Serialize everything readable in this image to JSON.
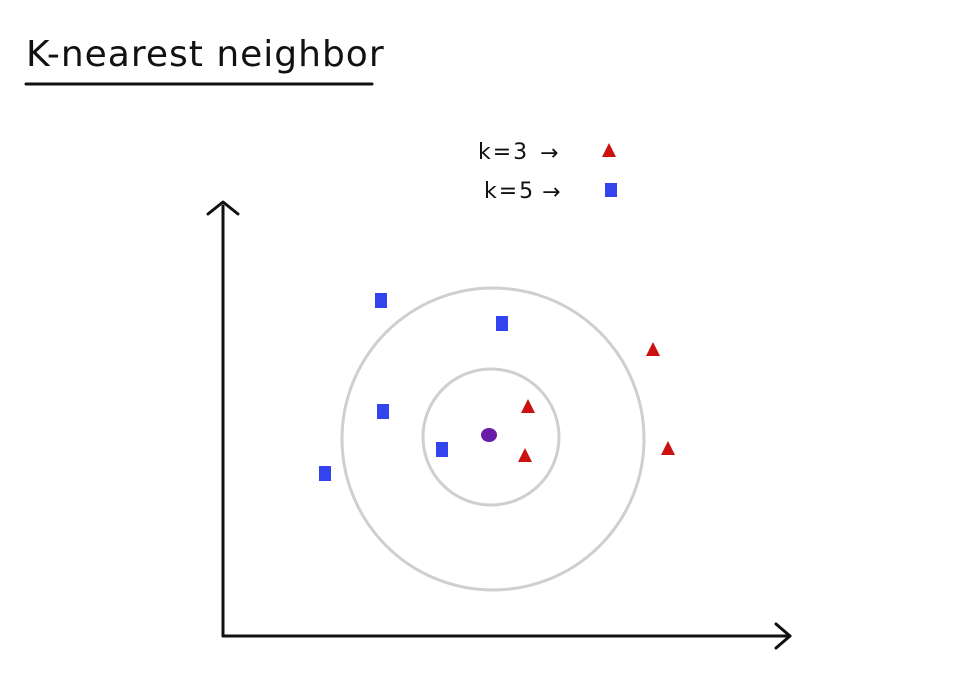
{
  "title": "K-nearest neighbor",
  "legend": [
    {
      "label": "k=3",
      "arrow": "→",
      "marker": "triangle",
      "color": "#cc1111"
    },
    {
      "label": "k=5",
      "arrow": "→",
      "marker": "square",
      "color": "#3344ee"
    }
  ],
  "colors": {
    "class_triangle": "#cc1111",
    "class_square": "#3344ee",
    "query_point": "#6a1ca8",
    "circle": "#cfcfcf",
    "axes": "#111111"
  },
  "diagram": {
    "query_point": {
      "shape": "circle"
    },
    "neighborhoods": [
      {
        "k": 3
      },
      {
        "k": 5
      }
    ],
    "points": [
      {
        "class": "square"
      },
      {
        "class": "square"
      },
      {
        "class": "square"
      },
      {
        "class": "square"
      },
      {
        "class": "square"
      },
      {
        "class": "triangle"
      },
      {
        "class": "triangle"
      },
      {
        "class": "triangle"
      },
      {
        "class": "triangle"
      }
    ]
  }
}
